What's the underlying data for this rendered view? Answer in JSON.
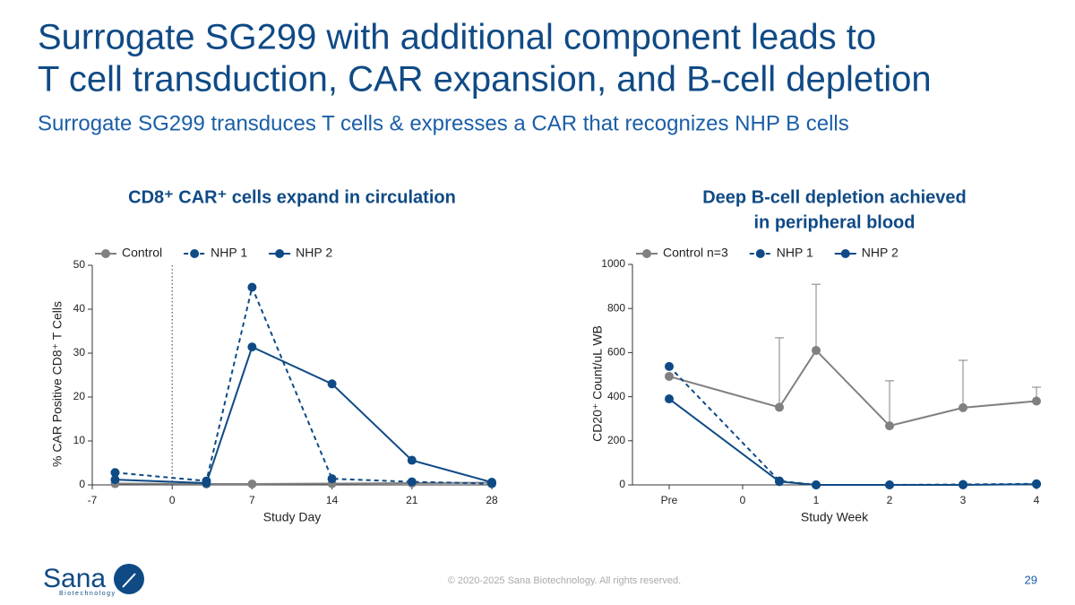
{
  "title": [
    "Surrogate SG299 with additional component leads to",
    "T cell transduction, CAR expansion, and B-cell depletion"
  ],
  "subtitle": "Surrogate SG299 transduces T cells & expresses a CAR that recognizes NHP B cells",
  "footer": "© 2020-2025 Sana Biotechnology. All rights reserved.",
  "page_number": "29",
  "logo": {
    "name": "Sana",
    "tagline": "Biotechnology"
  },
  "chart_data": [
    {
      "type": "line",
      "title": [
        "CD8⁺ CAR⁺ cells expand in circulation"
      ],
      "x_label": "Study Day",
      "y_label": "% CAR Positive CD8⁺ T Cells",
      "xlim": [
        -7,
        28
      ],
      "xticks": [
        -7,
        0,
        7,
        14,
        21,
        28
      ],
      "ylim": [
        0,
        50
      ],
      "yticks": [
        0,
        10,
        20,
        30,
        40,
        50
      ],
      "vline": 0,
      "x": [
        -5,
        3,
        7,
        14,
        21,
        28
      ],
      "series": [
        {
          "name": "Control",
          "color": "#808080",
          "dashed": false,
          "values": [
            0.3,
            0.2,
            0.2,
            0.3,
            0.4,
            0.5
          ]
        },
        {
          "name": "NHP 1",
          "color": "#0f4a85",
          "dashed": true,
          "values": [
            2.8,
            0.9,
            45,
            1.4,
            0.7,
            0.3
          ]
        },
        {
          "name": "NHP 2",
          "color": "#0f4a85",
          "dashed": false,
          "values": [
            1.2,
            0.4,
            31.4,
            23,
            5.6,
            0.6
          ]
        }
      ]
    },
    {
      "type": "line",
      "title": [
        "Deep B-cell depletion achieved",
        "in peripheral blood"
      ],
      "x_label": "Study Week",
      "y_label": "CD20⁺ Count/uL WB",
      "xlim": [
        -1.5,
        4
      ],
      "xticks": [
        {
          "value": -1,
          "label": "Pre"
        },
        0,
        1,
        2,
        3,
        4
      ],
      "ylim": [
        0,
        1000
      ],
      "yticks": [
        0,
        200,
        400,
        600,
        800,
        1000
      ],
      "x": [
        -1,
        0.5,
        1,
        2,
        3,
        4
      ],
      "series": [
        {
          "name": "Control n=3",
          "color": "#808080",
          "dashed": false,
          "values": [
            492,
            352,
            610,
            268,
            350,
            380
          ],
          "error": [
            null,
            315,
            300,
            204,
            215,
            63
          ]
        },
        {
          "name": "NHP 1",
          "color": "#0f4a85",
          "dashed": true,
          "values": [
            537,
            18,
            0,
            0,
            2,
            5
          ]
        },
        {
          "name": "NHP 2",
          "color": "#0f4a85",
          "dashed": false,
          "values": [
            390,
            15,
            0,
            0,
            0,
            3
          ]
        }
      ]
    }
  ]
}
